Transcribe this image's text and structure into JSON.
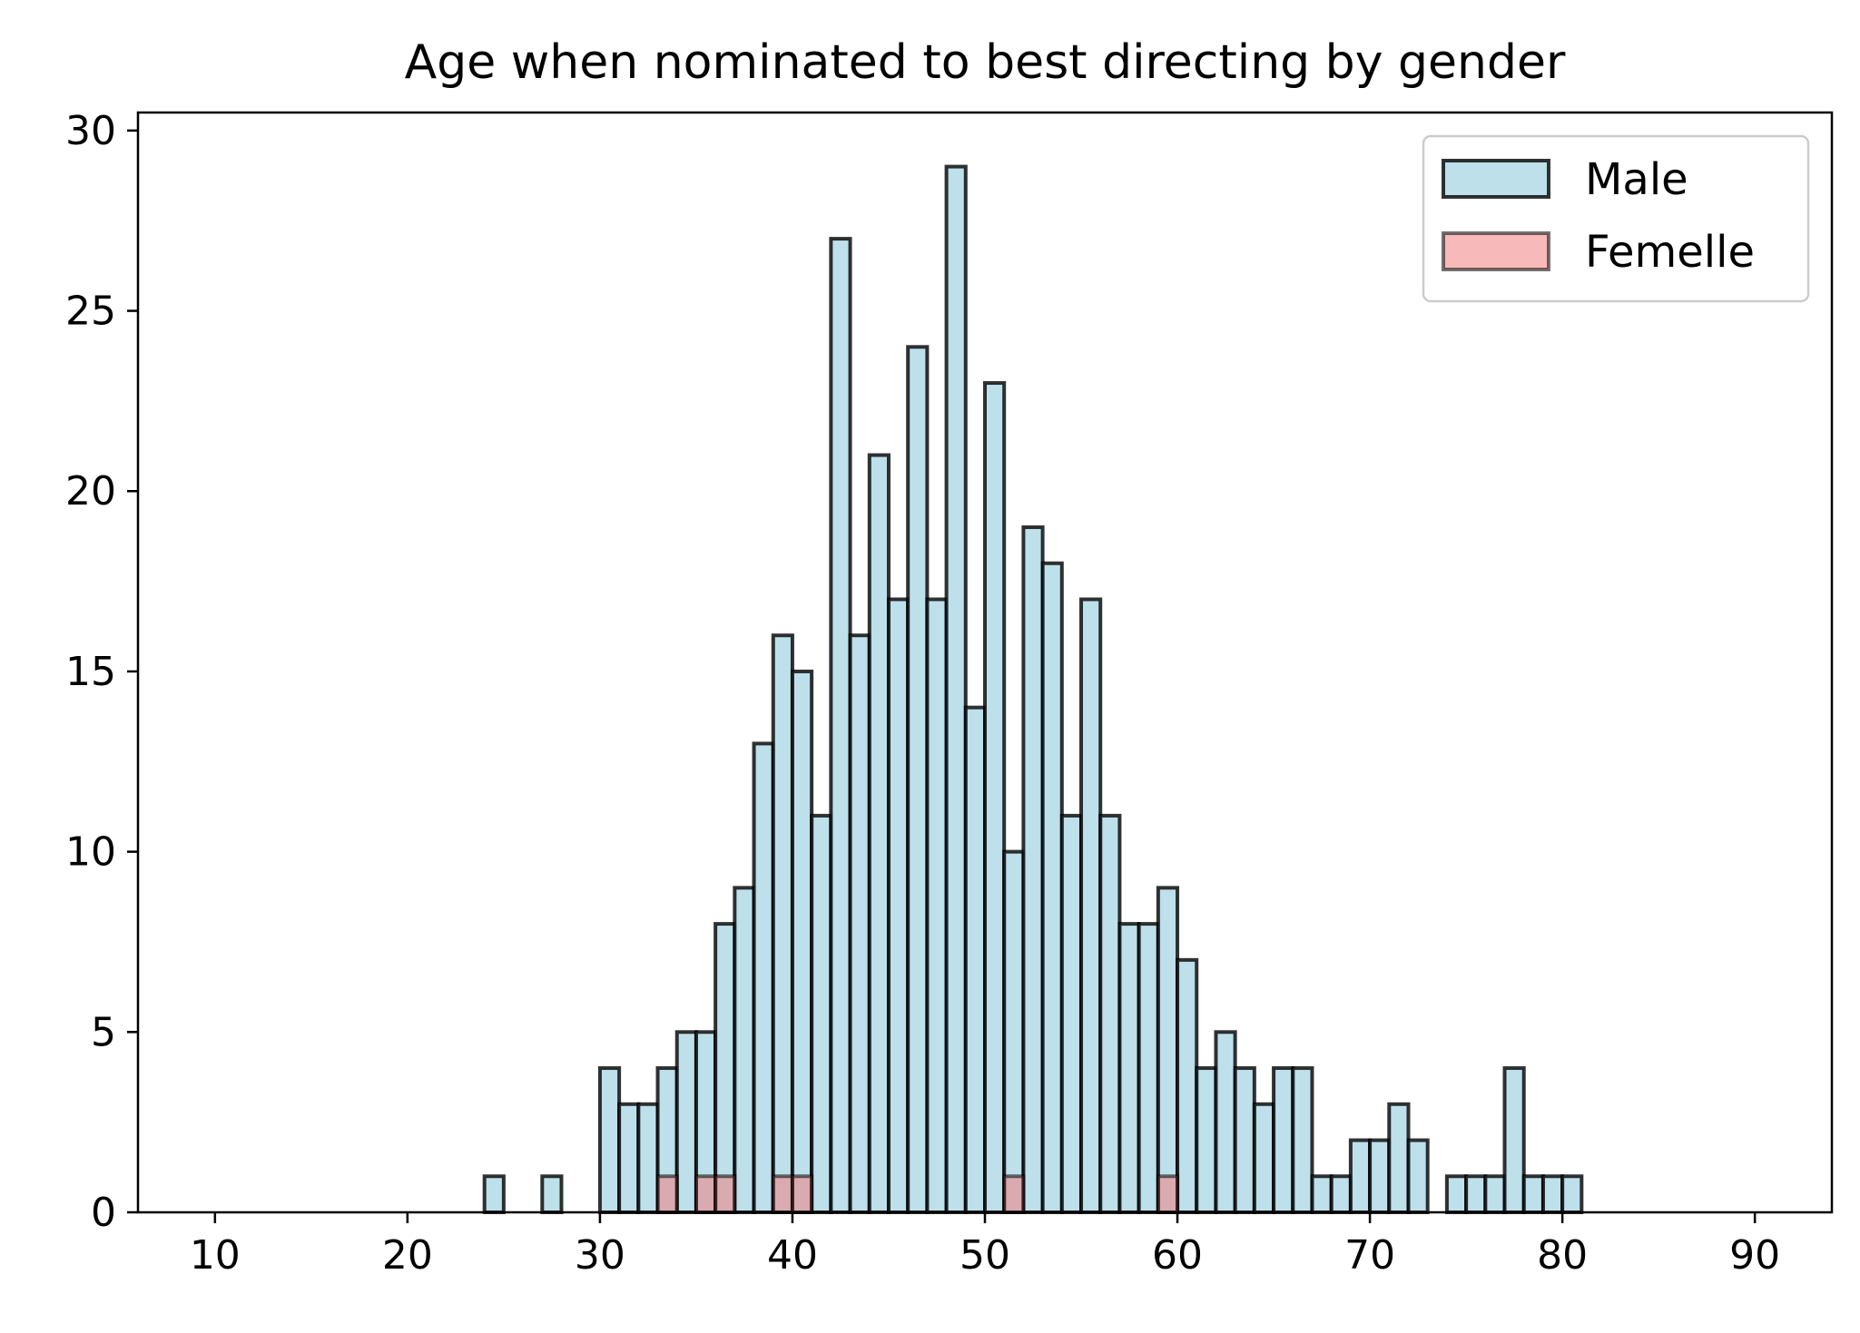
{
  "chart_data": {
    "type": "bar",
    "title": "Age when nominated to best directing by gender",
    "xlabel": "",
    "ylabel": "",
    "xlim": [
      6,
      94
    ],
    "ylim": [
      0,
      30.5
    ],
    "x_ticks": [
      10,
      20,
      30,
      40,
      50,
      60,
      70,
      80,
      90
    ],
    "y_ticks": [
      0,
      5,
      10,
      15,
      20,
      25,
      30
    ],
    "bin_start": 10,
    "bin_width": 1,
    "grid": false,
    "legend_position": "top-right",
    "series": [
      {
        "name": "Male",
        "color": "#add8e6",
        "values": [
          0,
          0,
          0,
          0,
          0,
          0,
          0,
          0,
          0,
          0,
          0,
          0,
          0,
          0,
          1,
          0,
          0,
          1,
          0,
          0,
          4,
          3,
          3,
          4,
          5,
          5,
          8,
          9,
          13,
          16,
          15,
          11,
          27,
          16,
          21,
          17,
          24,
          17,
          29,
          14,
          23,
          10,
          19,
          18,
          11,
          17,
          11,
          8,
          8,
          9,
          7,
          4,
          5,
          4,
          3,
          4,
          4,
          1,
          1,
          2,
          2,
          3,
          2,
          0,
          1,
          1,
          1,
          4,
          1,
          1,
          1,
          0,
          0,
          0,
          0,
          0,
          0,
          0,
          0,
          0,
          0
        ]
      },
      {
        "name": "Femelle",
        "color": "#f08080",
        "values": [
          0,
          0,
          0,
          0,
          0,
          0,
          0,
          0,
          0,
          0,
          0,
          0,
          0,
          0,
          0,
          0,
          0,
          0,
          0,
          0,
          0,
          0,
          0,
          1,
          0,
          1,
          1,
          0,
          0,
          1,
          1,
          0,
          0,
          0,
          0,
          0,
          0,
          0,
          0,
          0,
          0,
          1,
          0,
          0,
          0,
          0,
          0,
          0,
          0,
          1,
          0,
          0,
          0,
          0,
          0,
          0,
          0,
          0,
          0,
          0,
          0,
          0,
          0,
          0,
          0,
          0,
          0,
          0,
          0,
          0,
          0,
          0,
          0,
          0,
          0,
          0,
          0,
          0,
          0,
          0,
          0
        ]
      }
    ]
  }
}
